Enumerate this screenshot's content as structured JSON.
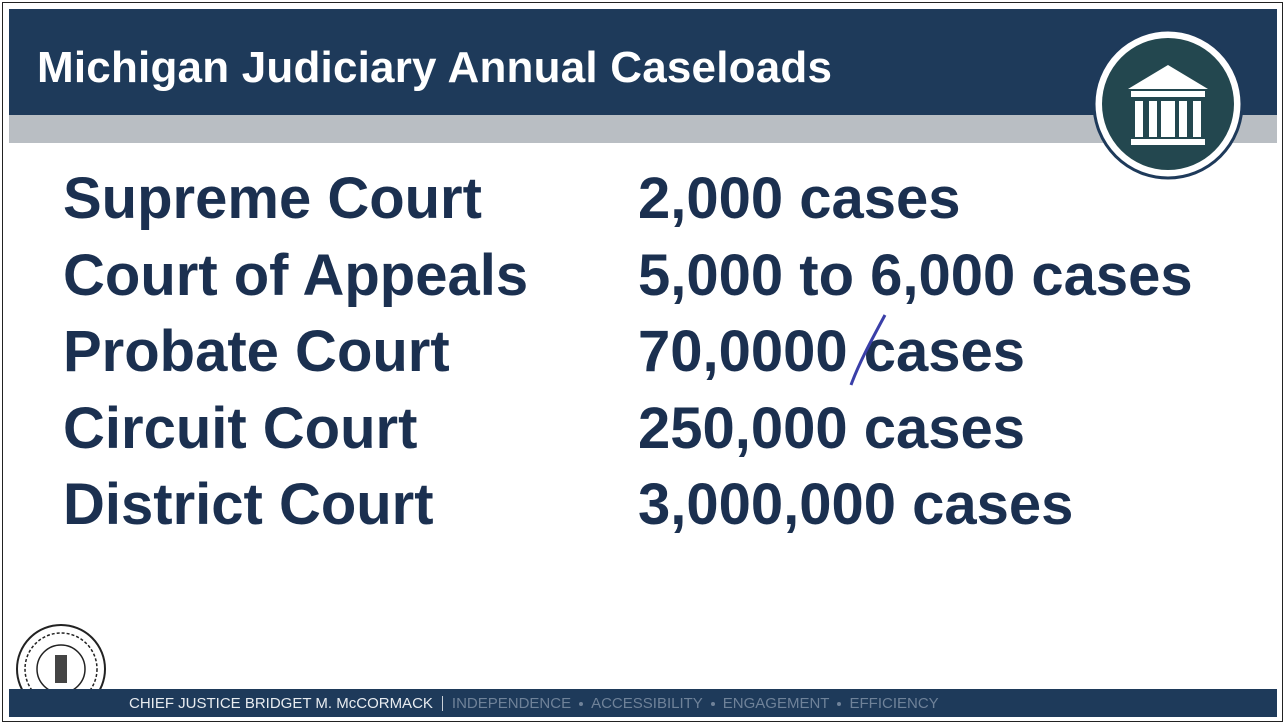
{
  "header": {
    "title": "Michigan Judiciary Annual Caseloads"
  },
  "rows": [
    {
      "court": "Supreme Court",
      "caseload": "2,000 cases"
    },
    {
      "court": "Court of Appeals",
      "caseload": "5,000 to 6,000 cases"
    },
    {
      "court": "Probate Court",
      "caseload": "70,0000 cases"
    },
    {
      "court": "Circuit Court",
      "caseload": "250,000 cases"
    },
    {
      "court": "District Court",
      "caseload": "3,000,000 cases"
    }
  ],
  "footer": {
    "name": "CHIEF JUSTICE BRIDGET M. McCORMACK",
    "values": [
      "INDEPENDENCE",
      "ACCESSIBILITY",
      "ENGAGEMENT",
      "EFFICIENCY"
    ]
  }
}
